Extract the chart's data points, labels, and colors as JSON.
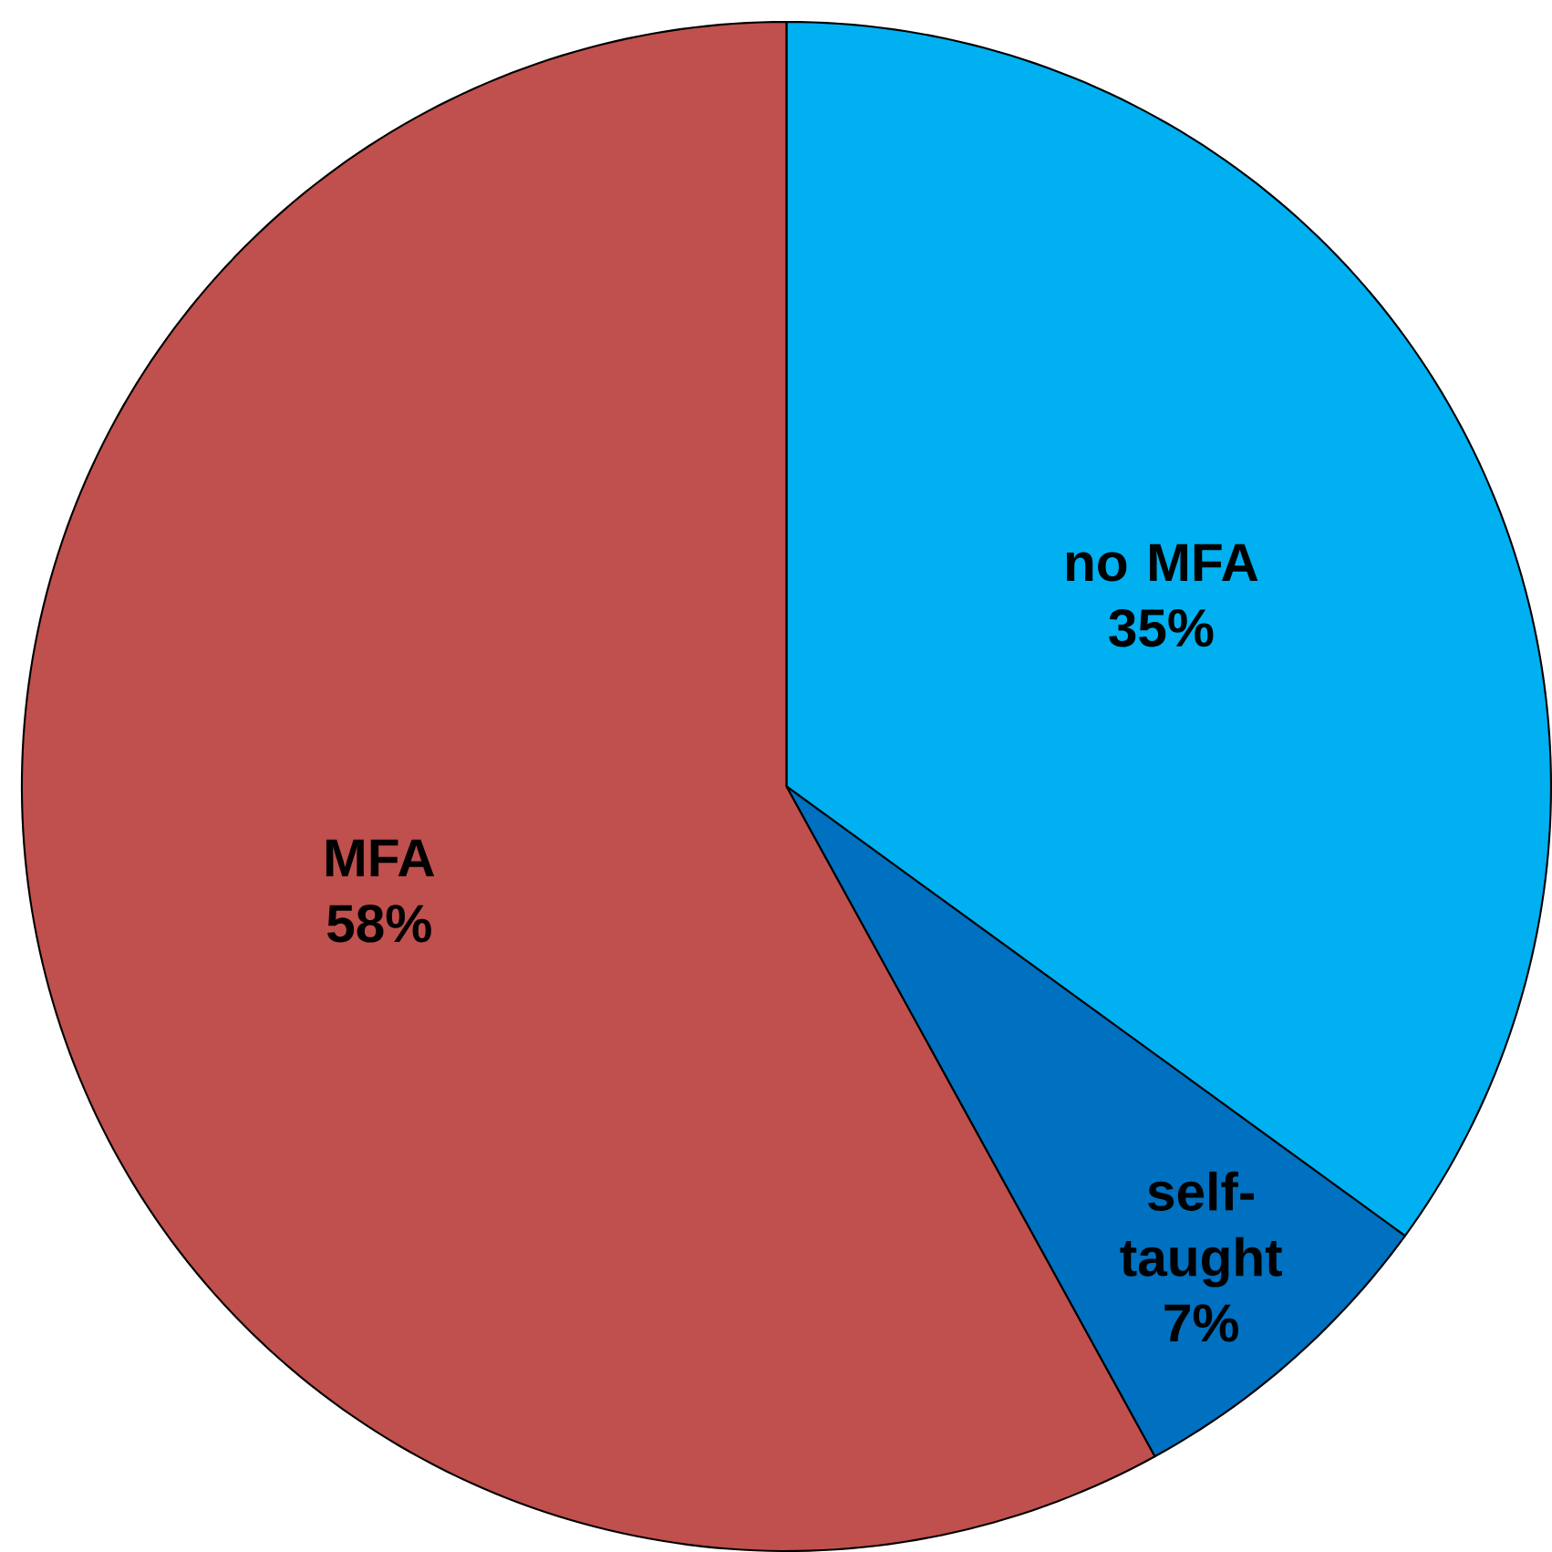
{
  "chart_data": {
    "type": "pie",
    "categories": [
      "no MFA",
      "self-taught",
      "MFA"
    ],
    "values": [
      35,
      7,
      58
    ],
    "colors": [
      "#00b0f0",
      "#0070c0",
      "#c0504d"
    ],
    "value_labels": [
      "35%",
      "7%",
      "58%"
    ]
  }
}
